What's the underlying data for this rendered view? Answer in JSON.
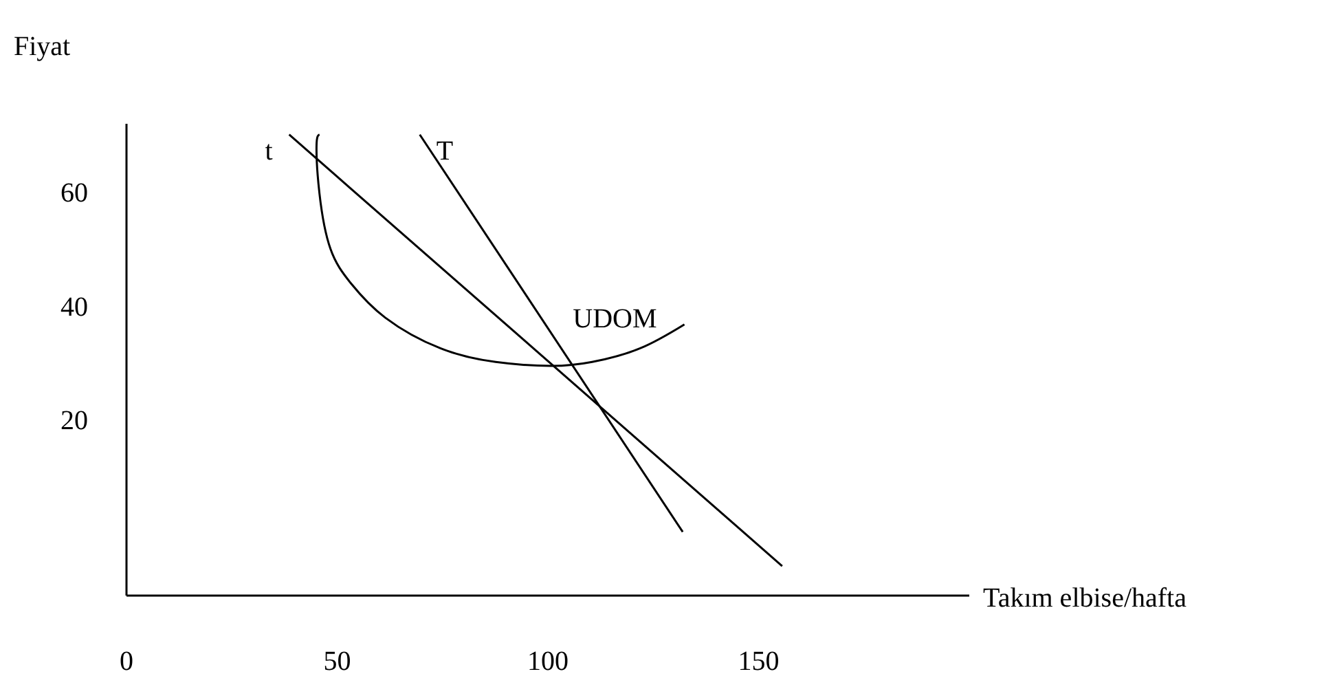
{
  "chart_data": {
    "type": "line",
    "xlabel": "Takım elbise/hafta",
    "ylabel": "Fiyat",
    "xlim": [
      0,
      200
    ],
    "xticks": [
      0,
      50,
      100,
      150
    ],
    "ylim": [
      -11,
      72
    ],
    "yticks": [
      20,
      40,
      60
    ],
    "grid": false,
    "legend": false,
    "marker": "none",
    "line_style": "solid",
    "series": [
      {
        "name": "t",
        "color": "#000000",
        "x": [
          38.6,
          155.6
        ],
        "values": [
          70.1,
          -5.8
        ]
      },
      {
        "name": "T",
        "color": "#000000",
        "x": [
          69.6,
          132
        ],
        "values": [
          70.1,
          0.2
        ]
      },
      {
        "name": "UDOM",
        "color": "#000000",
        "x": [
          132.4,
          121.9,
          110.5,
          100.7,
          87.6,
          74.5,
          61.4,
          53.3,
          48.4,
          45.8,
          45.1,
          45.8
        ],
        "values": [
          36.7,
          32.5,
          30.1,
          29.4,
          30.1,
          32.5,
          37.9,
          43.9,
          50.0,
          59.7,
          68.2,
          70.1
        ]
      }
    ]
  }
}
